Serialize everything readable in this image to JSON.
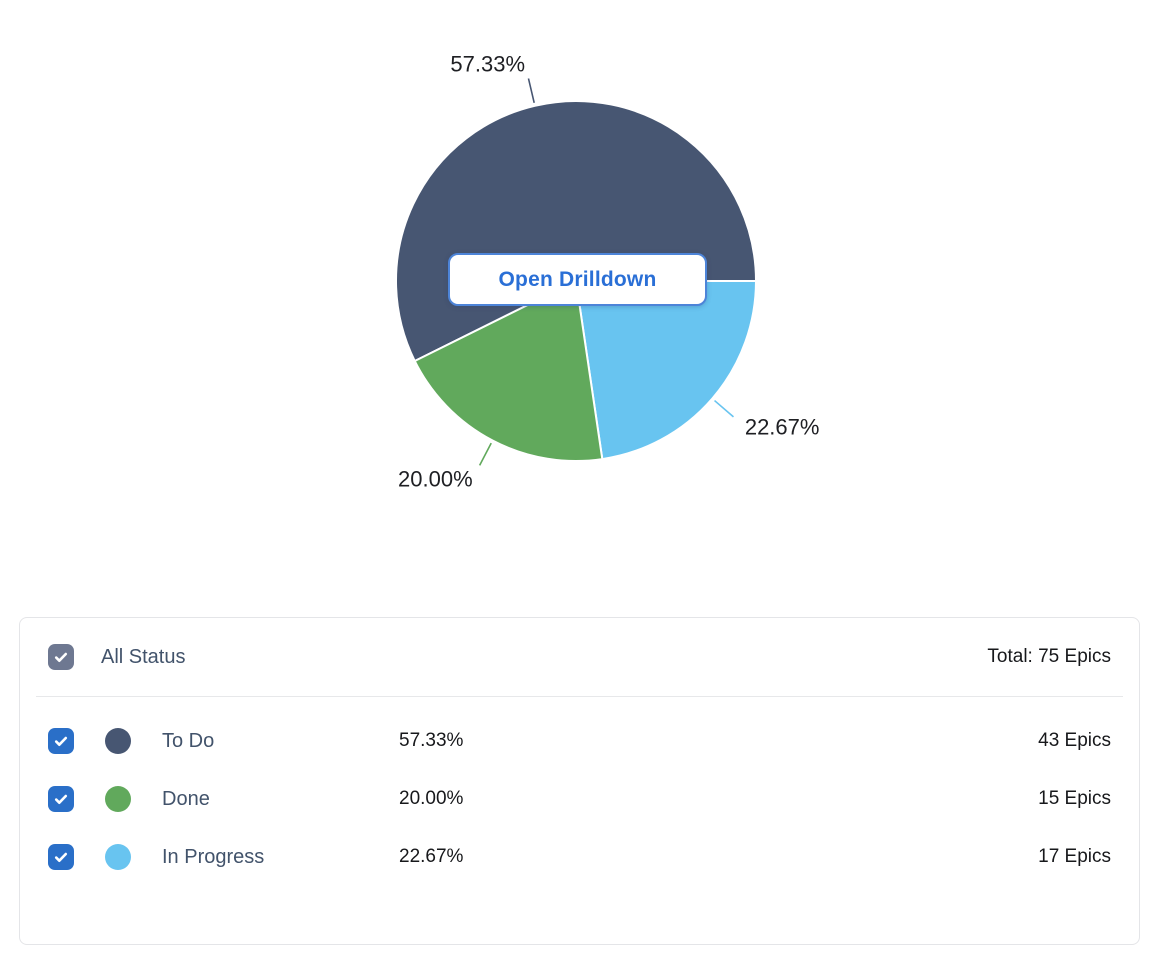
{
  "chart": {
    "drilldown_button_label": "Open Drilldown"
  },
  "chart_data": {
    "type": "pie",
    "title": "",
    "unit": "Epics",
    "total": 75,
    "total_label": "Total: 75 Epics",
    "start_angle_deg": 243.6,
    "draw_order": [
      0,
      2,
      1
    ],
    "labels_outside": true,
    "legend_position": "bottom-table",
    "slices": [
      {
        "label": "To Do",
        "value": 43,
        "percent": 57.33,
        "percent_label": "57.33%",
        "count_label": "43 Epics",
        "color": "#475672"
      },
      {
        "label": "Done",
        "value": 15,
        "percent": 20.0,
        "percent_label": "20.00%",
        "count_label": "15 Epics",
        "color": "#61a95c"
      },
      {
        "label": "In Progress",
        "value": 17,
        "percent": 22.67,
        "percent_label": "22.67%",
        "count_label": "17 Epics",
        "color": "#68c4f0"
      }
    ]
  },
  "legend": {
    "header": {
      "label": "All Status",
      "total_label": "Total: 75 Epics",
      "checkbox_state": "checked"
    },
    "rows": [
      {
        "label": "To Do",
        "percent": "57.33%",
        "count": "43 Epics",
        "color": "#475672",
        "checked": true
      },
      {
        "label": "Done",
        "percent": "20.00%",
        "count": "15 Epics",
        "color": "#61a95c",
        "checked": true
      },
      {
        "label": "In Progress",
        "percent": "22.67%",
        "count": "17 Epics",
        "color": "#68c4f0",
        "checked": true
      }
    ]
  },
  "colors": {
    "checkbox_all": "#6e7891",
    "checkbox_row": "#2a6fc8",
    "button_border": "#4d84d8",
    "button_text": "#2a6fd6",
    "pie_label_text": "#1e1f23",
    "row_label_text": "#42536b",
    "value_text": "#17181b"
  }
}
